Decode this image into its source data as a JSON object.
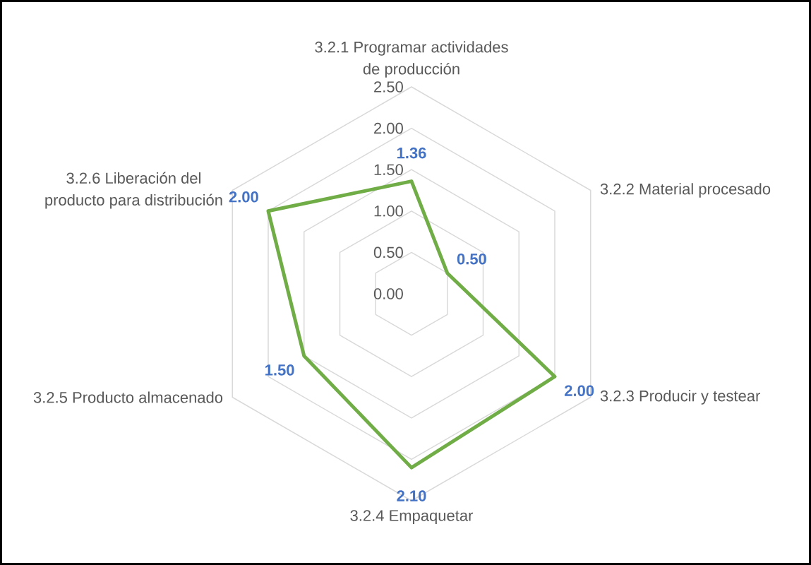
{
  "chart_data": {
    "type": "radar",
    "categories": [
      "3.2.1 Programar actividades de producción",
      "3.2.2 Material procesado",
      "3.2.3 Producir y testear",
      "3.2.4 Empaquetar",
      "3.2.5 Producto almacenado",
      "3.2.6 Liberación del producto para distribución"
    ],
    "series": [
      {
        "color": "#70ad47",
        "values": [
          1.36,
          0.5,
          2.0,
          2.1,
          1.5,
          2.0
        ],
        "value_labels": [
          "1.36",
          "0.50",
          "2.00",
          "2.10",
          "1.50",
          "2.00"
        ]
      }
    ],
    "ylim": [
      0,
      2.5
    ],
    "yticks": [
      {
        "value": 0,
        "label": "0.00"
      },
      {
        "value": 0.5,
        "label": "0.50"
      },
      {
        "value": 1,
        "label": "1.00"
      },
      {
        "value": 1.5,
        "label": "1.50"
      },
      {
        "value": 2,
        "label": "2.00"
      },
      {
        "value": 2.5,
        "label": "2.50"
      }
    ],
    "grid": true
  }
}
